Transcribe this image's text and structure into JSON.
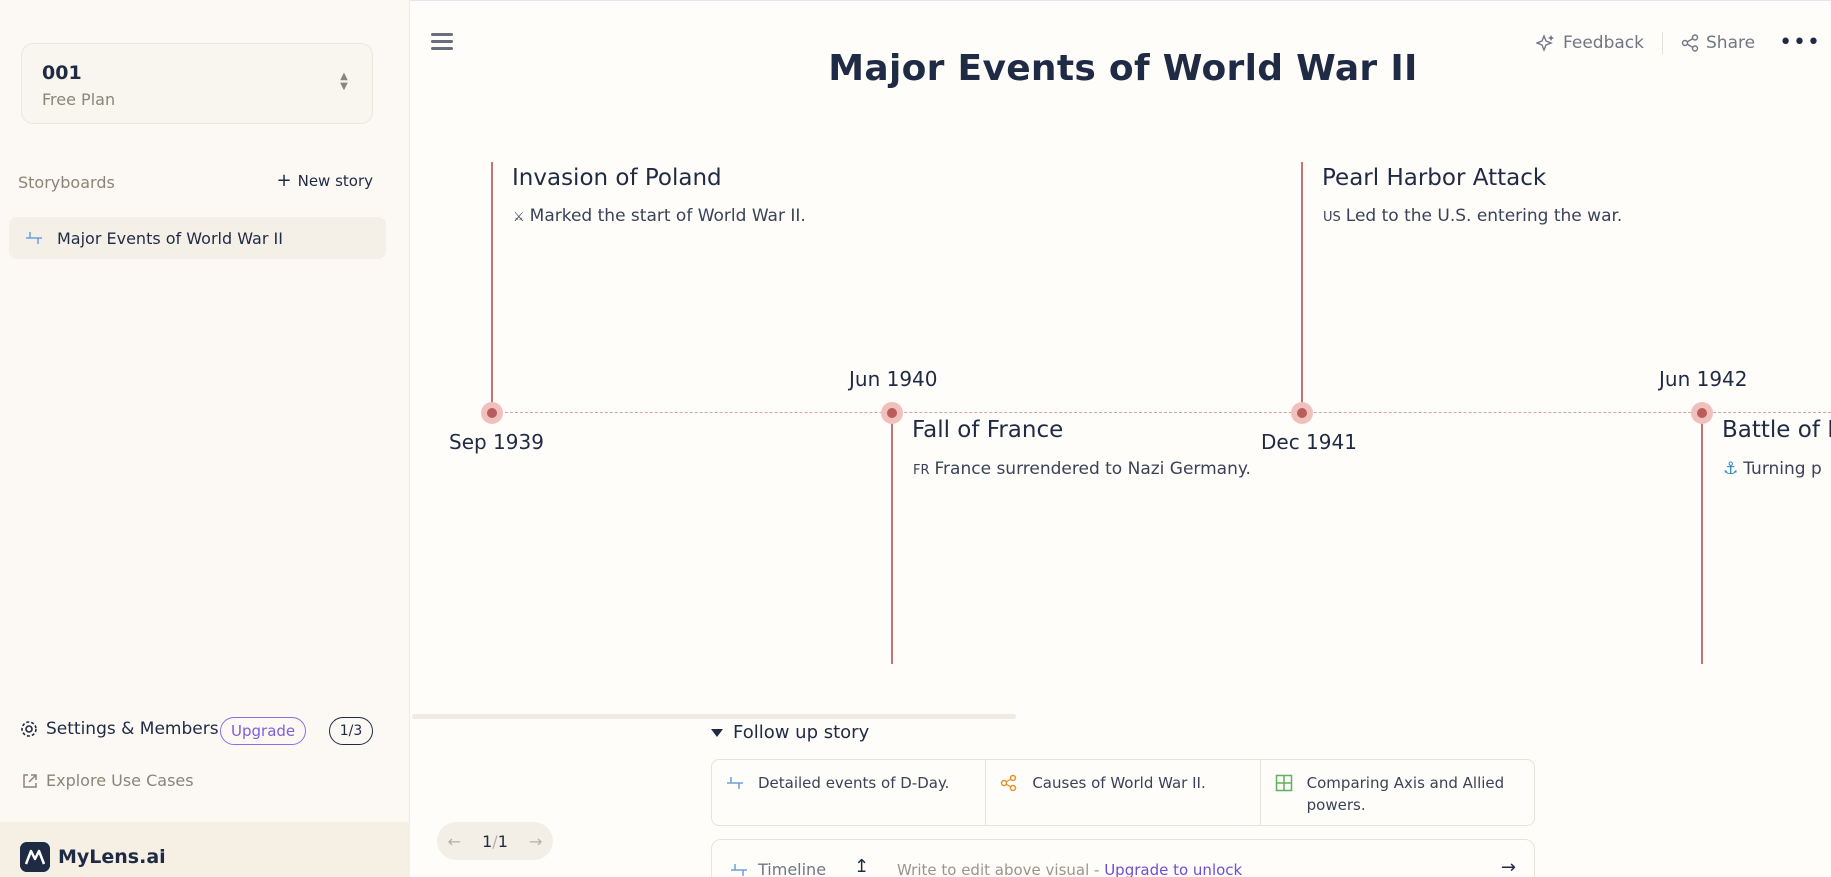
{
  "sidebar": {
    "plan_name": "001",
    "plan_tier": "Free Plan",
    "section_label": "Storyboards",
    "new_story_label": "New story",
    "stories": [
      {
        "label": "Major Events of World War II"
      }
    ],
    "settings_label": "Settings & Members",
    "upgrade_label": "Upgrade",
    "usage_count": "1/3",
    "explore_label": "Explore Use Cases",
    "brand_name": "MyLens.ai"
  },
  "header": {
    "title": "Major Events of World War II",
    "feedback_label": "Feedback",
    "share_label": "Share",
    "more_label": "•••"
  },
  "timeline": {
    "accent_color": "#c97272",
    "events": [
      {
        "date": "Sep 1939",
        "title": "Invasion of Poland",
        "icon": "⚔",
        "desc": "Marked the start of World War II."
      },
      {
        "date": "Jun 1940",
        "title": "Fall of France",
        "icon": "FR",
        "desc": "France surrendered to Nazi Germany."
      },
      {
        "date": "Dec 1941",
        "title": "Pearl Harbor Attack",
        "icon": "US",
        "desc": "Led to the U.S. entering the war."
      },
      {
        "date": "Jun 1942",
        "title": "Battle of M",
        "icon": "⚓",
        "desc": "Turning p"
      }
    ]
  },
  "followup": {
    "label": "Follow up story",
    "cards": [
      {
        "icon": "timeline-icon",
        "label": "Detailed events of D-Day."
      },
      {
        "icon": "network-icon",
        "label": "Causes of World War II."
      },
      {
        "icon": "grid-icon",
        "label": "Comparing Axis and Allied powers."
      }
    ]
  },
  "pager": {
    "current": "1",
    "sep": "/",
    "total": "1"
  },
  "inputbar": {
    "mode_label": "Timeline",
    "placeholder": "Write to edit above visual - ",
    "upgrade_link": "Upgrade to unlock"
  }
}
